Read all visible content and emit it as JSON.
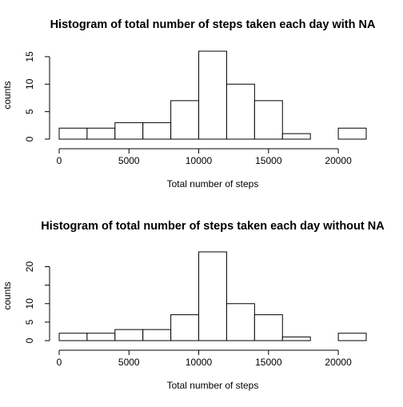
{
  "chart_data": [
    {
      "type": "bar",
      "title": "Histogram of total number of steps taken each day with NA",
      "xlabel": "Total number of steps",
      "ylabel": "counts",
      "bin_edges": [
        0,
        2000,
        4000,
        6000,
        8000,
        10000,
        12000,
        14000,
        16000,
        18000,
        20000,
        22000
      ],
      "values": [
        2,
        2,
        3,
        3,
        7,
        16,
        10,
        7,
        1,
        0,
        2
      ],
      "xticks": [
        0,
        5000,
        10000,
        15000,
        20000
      ],
      "yticks": [
        0,
        5,
        10,
        15
      ],
      "xlim": [
        0,
        22000
      ],
      "ylim": [
        0,
        16
      ],
      "grid": false
    },
    {
      "type": "bar",
      "title": "Histogram of total number of steps taken each day without NA",
      "xlabel": "Total number of steps",
      "ylabel": "counts",
      "bin_edges": [
        0,
        2000,
        4000,
        6000,
        8000,
        10000,
        12000,
        14000,
        16000,
        18000,
        20000,
        22000
      ],
      "values": [
        2,
        2,
        3,
        3,
        7,
        24,
        10,
        7,
        1,
        0,
        2
      ],
      "xticks": [
        0,
        5000,
        10000,
        15000,
        20000
      ],
      "yticks": [
        0,
        5,
        10,
        20
      ],
      "minor_yticks": [
        15
      ],
      "xlim": [
        0,
        22000
      ],
      "ylim": [
        0,
        24
      ],
      "grid": false
    }
  ]
}
